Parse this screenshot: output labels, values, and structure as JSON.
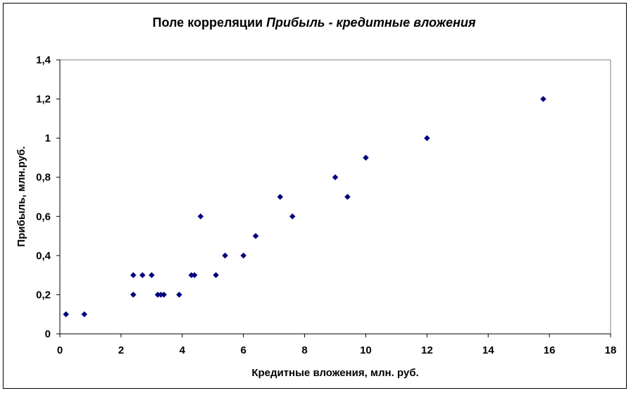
{
  "chart_data": {
    "type": "scatter",
    "title": "Поле корреляции",
    "title_italic": "Прибыль - кредитные вложения",
    "xlabel": "Кредитные вложения, млн.  руб.",
    "ylabel": "Прибыль, млн.руб.",
    "xlim": [
      0,
      18
    ],
    "ylim": [
      0,
      1.4
    ],
    "xticks": [
      "0",
      "2",
      "4",
      "6",
      "8",
      "10",
      "12",
      "14",
      "16",
      "18"
    ],
    "yticks": [
      "0",
      "0,2",
      "0,4",
      "0,6",
      "0,8",
      "1",
      "1,2",
      "1,4"
    ],
    "grid": false,
    "marker_color": "#00007f",
    "series": [
      {
        "points": [
          [
            0.2,
            0.1
          ],
          [
            0.8,
            0.1
          ],
          [
            2.4,
            0.3
          ],
          [
            2.4,
            0.2
          ],
          [
            2.7,
            0.3
          ],
          [
            3.0,
            0.3
          ],
          [
            3.2,
            0.2
          ],
          [
            3.3,
            0.2
          ],
          [
            3.4,
            0.2
          ],
          [
            3.9,
            0.2
          ],
          [
            4.3,
            0.3
          ],
          [
            4.4,
            0.3
          ],
          [
            4.6,
            0.6
          ],
          [
            5.1,
            0.3
          ],
          [
            5.4,
            0.4
          ],
          [
            6.0,
            0.4
          ],
          [
            6.4,
            0.5
          ],
          [
            7.2,
            0.7
          ],
          [
            7.6,
            0.6
          ],
          [
            9.0,
            0.8
          ],
          [
            9.4,
            0.7
          ],
          [
            10.0,
            0.9
          ],
          [
            12.0,
            1.0
          ],
          [
            15.8,
            1.2
          ]
        ]
      }
    ]
  }
}
